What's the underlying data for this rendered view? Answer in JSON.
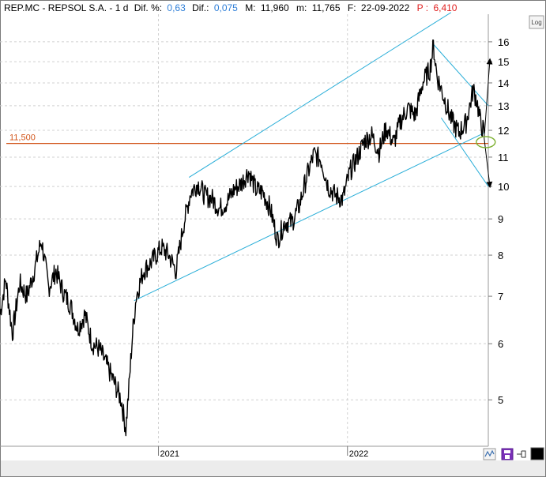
{
  "header": {
    "symbol": "REP.MC - REPSOL  S.A. - 1 d",
    "dif_pct_label": "Dif. %:",
    "dif_pct_value": "0,63",
    "dif_label": "Dif.:",
    "dif_value": "0,075",
    "max_label": "M:",
    "max_value": "11,960",
    "min_label": "m:",
    "min_value": "11,765",
    "date_label": "F:",
    "date_value": "22-09-2022",
    "p_label": "P :",
    "p_value": "6,410"
  },
  "controls": {
    "log_button": "Log"
  },
  "colors": {
    "positive": "#2f7fd8",
    "negative": "#e02020",
    "price": "#000000",
    "channel": "#2aaed8",
    "support": "#d2551a",
    "target_circle": "#7cb02f",
    "grid": "#d0d0d0"
  },
  "chart_data": {
    "type": "line",
    "scale": "log",
    "ylim": [
      4.3,
      17.5
    ],
    "xlim": [
      "2020-03-01",
      "2022-09-30"
    ],
    "y_ticks": [
      5,
      6,
      7,
      8,
      9,
      10,
      11,
      12,
      13,
      14,
      15,
      16
    ],
    "x_ticks": [
      {
        "label": "2021",
        "date": "2021-01-01"
      },
      {
        "label": "2022",
        "date": "2022-01-01"
      }
    ],
    "grid": true,
    "horizontal_line": {
      "value": 11.5,
      "label": "11,500"
    },
    "series": [
      {
        "values": [
          [
            "2020-03-01",
            6.6
          ],
          [
            "2020-03-12",
            7.4
          ],
          [
            "2020-03-25",
            6.2
          ],
          [
            "2020-04-08",
            7.3
          ],
          [
            "2020-04-22",
            7.0
          ],
          [
            "2020-05-06",
            7.6
          ],
          [
            "2020-05-20",
            8.4
          ],
          [
            "2020-06-03",
            7.2
          ],
          [
            "2020-06-17",
            7.6
          ],
          [
            "2020-07-01",
            7.1
          ],
          [
            "2020-07-15",
            6.8
          ],
          [
            "2020-07-29",
            6.3
          ],
          [
            "2020-08-12",
            6.6
          ],
          [
            "2020-08-26",
            6.0
          ],
          [
            "2020-09-09",
            5.9
          ],
          [
            "2020-09-23",
            5.6
          ],
          [
            "2020-10-07",
            5.3
          ],
          [
            "2020-10-21",
            5.0
          ],
          [
            "2020-10-30",
            4.55
          ],
          [
            "2020-11-05",
            5.2
          ],
          [
            "2020-11-12",
            6.2
          ],
          [
            "2020-11-19",
            7.0
          ],
          [
            "2020-12-03",
            7.6
          ],
          [
            "2020-12-17",
            7.8
          ],
          [
            "2021-01-07",
            8.2
          ],
          [
            "2021-01-21",
            8.0
          ],
          [
            "2021-02-04",
            7.6
          ],
          [
            "2021-02-18",
            8.8
          ],
          [
            "2021-03-04",
            9.8
          ],
          [
            "2021-03-18",
            10.1
          ],
          [
            "2021-04-01",
            9.7
          ],
          [
            "2021-04-15",
            9.6
          ],
          [
            "2021-04-29",
            9.3
          ],
          [
            "2021-05-13",
            9.5
          ],
          [
            "2021-05-27",
            9.9
          ],
          [
            "2021-06-10",
            10.1
          ],
          [
            "2021-06-24",
            10.5
          ],
          [
            "2021-07-08",
            9.9
          ],
          [
            "2021-07-22",
            9.8
          ],
          [
            "2021-08-05",
            9.3
          ],
          [
            "2021-08-19",
            8.4
          ],
          [
            "2021-09-02",
            8.9
          ],
          [
            "2021-09-16",
            8.9
          ],
          [
            "2021-09-30",
            9.4
          ],
          [
            "2021-10-14",
            10.3
          ],
          [
            "2021-10-28",
            11.1
          ],
          [
            "2021-11-11",
            10.9
          ],
          [
            "2021-11-25",
            10.0
          ],
          [
            "2021-12-09",
            9.7
          ],
          [
            "2021-12-23",
            9.6
          ],
          [
            "2022-01-06",
            10.5
          ],
          [
            "2022-01-20",
            11.0
          ],
          [
            "2022-02-03",
            11.6
          ],
          [
            "2022-02-17",
            11.8
          ],
          [
            "2022-03-03",
            11.2
          ],
          [
            "2022-03-17",
            12.1
          ],
          [
            "2022-03-31",
            11.5
          ],
          [
            "2022-04-14",
            12.4
          ],
          [
            "2022-04-28",
            12.9
          ],
          [
            "2022-05-12",
            12.6
          ],
          [
            "2022-05-26",
            14.0
          ],
          [
            "2022-06-09",
            14.6
          ],
          [
            "2022-06-16",
            15.8
          ],
          [
            "2022-06-23",
            14.3
          ],
          [
            "2022-07-07",
            13.3
          ],
          [
            "2022-07-21",
            12.4
          ],
          [
            "2022-08-04",
            11.9
          ],
          [
            "2022-08-18",
            12.3
          ],
          [
            "2022-09-01",
            13.7
          ],
          [
            "2022-09-08",
            13.2
          ],
          [
            "2022-09-15",
            12.3
          ],
          [
            "2022-09-22",
            11.9
          ]
        ]
      }
    ],
    "trendlines": [
      {
        "kind": "channel",
        "points": [
          [
            "2021-03-01",
            10.3
          ],
          [
            "2022-07-20",
            17.6
          ]
        ]
      },
      {
        "kind": "channel",
        "points": [
          [
            "2020-11-15",
            6.9
          ],
          [
            "2022-09-22",
            11.9
          ]
        ]
      },
      {
        "kind": "channel",
        "points": [
          [
            "2022-06-15",
            15.9
          ],
          [
            "2022-09-30",
            13.0
          ]
        ]
      },
      {
        "kind": "channel",
        "points": [
          [
            "2022-07-01",
            12.5
          ],
          [
            "2022-09-30",
            10.0
          ]
        ]
      }
    ],
    "projections": [
      {
        "from": [
          "2022-09-22",
          11.7
        ],
        "to": [
          "2022-09-30",
          15.1
        ]
      },
      {
        "from": [
          "2022-09-22",
          11.7
        ],
        "to": [
          "2022-09-30",
          10.0
        ]
      }
    ],
    "target_marker": {
      "date": "2022-09-22",
      "value": 11.55
    }
  }
}
